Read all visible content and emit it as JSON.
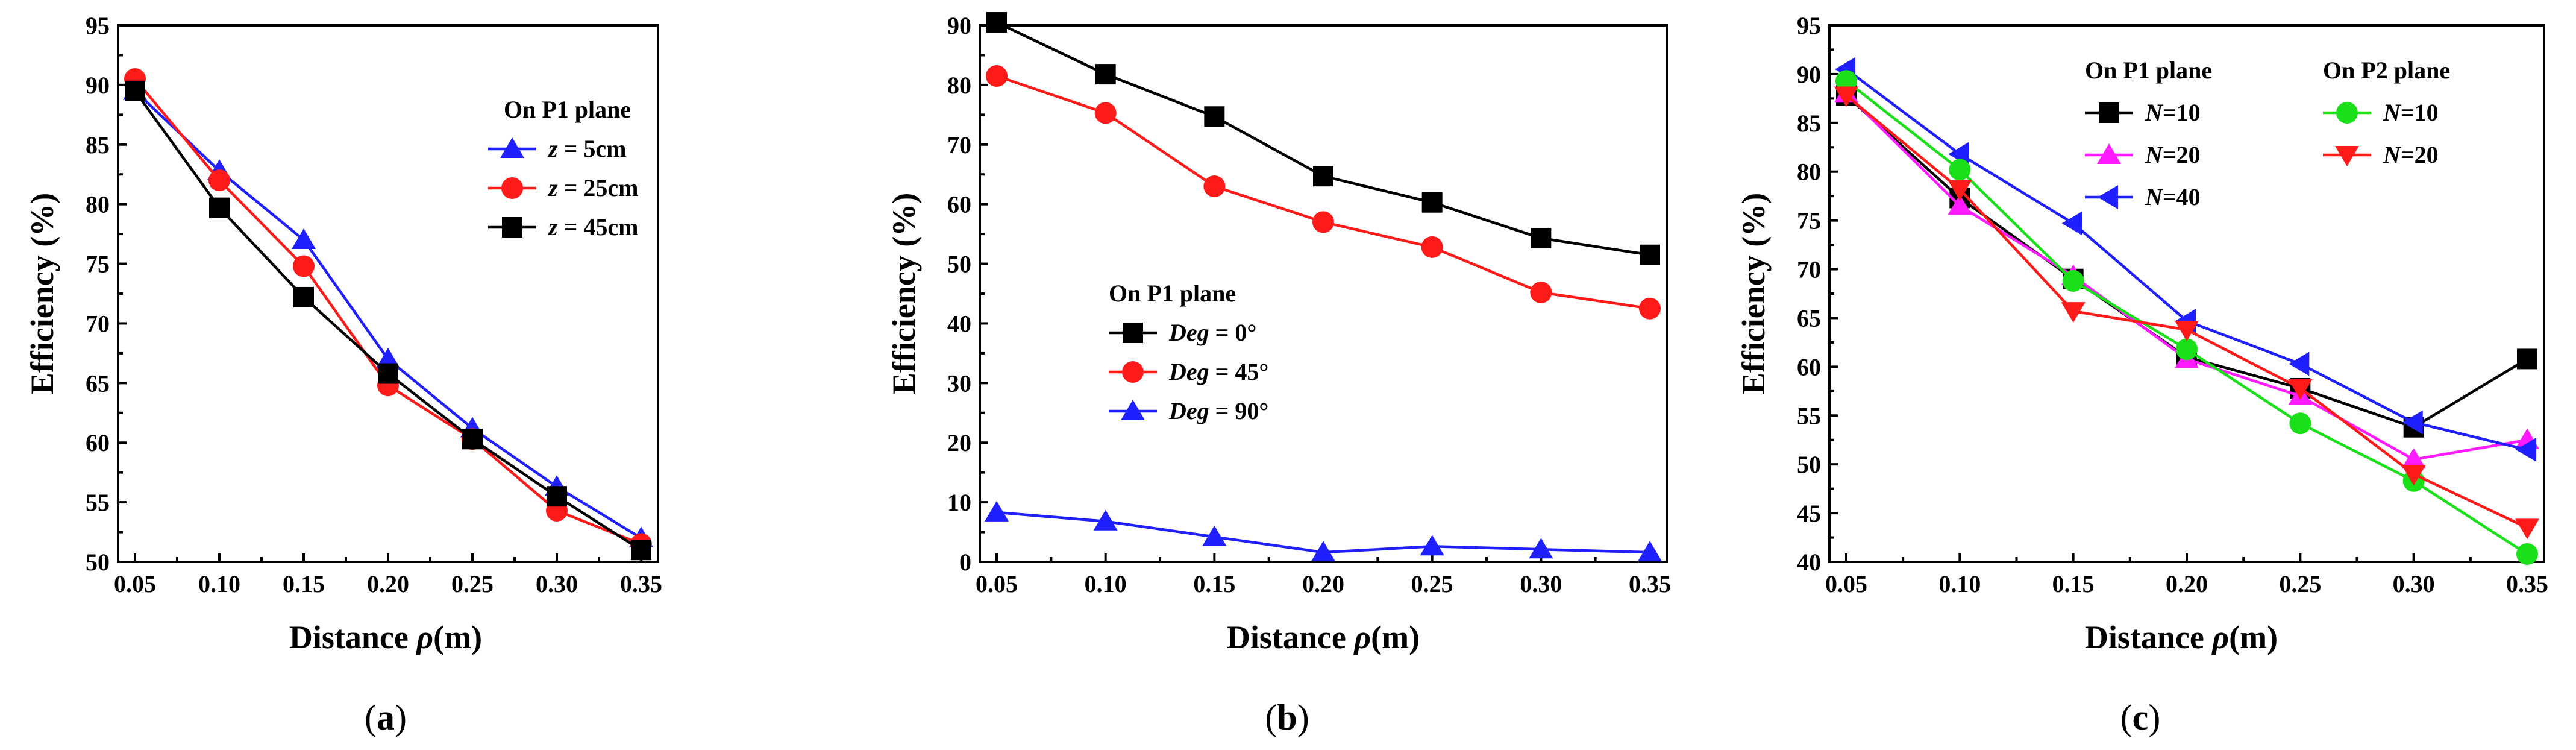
{
  "chart_data": [
    {
      "id": "a",
      "type": "line",
      "panel_label": "(a)",
      "panel_letter": "a",
      "xlabel_prefix": "Distance ",
      "xlabel_symbol": "ρ",
      "xlabel_suffix": "(m)",
      "ylabel": "Efficiency (%)",
      "xlim": [
        0.05,
        0.35
      ],
      "ylim": [
        50,
        95
      ],
      "xticks": [
        "0.05",
        "0.10",
        "0.15",
        "0.20",
        "0.25",
        "0.30",
        "0.35"
      ],
      "yticks": [
        "50",
        "55",
        "60",
        "65",
        "70",
        "75",
        "80",
        "85",
        "90",
        "95"
      ],
      "legend_groups": [
        {
          "heading": "On P1 plane",
          "entries": [
            0,
            1,
            2
          ]
        }
      ],
      "x": [
        0.05,
        0.1,
        0.15,
        0.2,
        0.25,
        0.3,
        0.35
      ],
      "series": [
        {
          "var": "z",
          "rest": " = 5cm",
          "color": "#1f1fff",
          "marker": "triangle-up",
          "values": [
            89.5,
            82.8,
            77.0,
            67.0,
            61.2,
            56.3,
            52.0
          ]
        },
        {
          "var": "z",
          "rest": " = 25cm",
          "color": "#ff1a1a",
          "marker": "circle",
          "values": [
            90.5,
            82.0,
            74.8,
            64.8,
            60.3,
            54.3,
            51.5
          ]
        },
        {
          "var": "z",
          "rest": " = 45cm",
          "color": "#000000",
          "marker": "square",
          "values": [
            89.5,
            79.7,
            72.2,
            65.8,
            60.3,
            55.5,
            51.0
          ]
        }
      ]
    },
    {
      "id": "b",
      "type": "line",
      "panel_label": "(b)",
      "panel_letter": "b",
      "xlabel_prefix": "Distance ",
      "xlabel_symbol": "ρ",
      "xlabel_suffix": "(m)",
      "ylabel": "Efficiency (%)",
      "xlim": [
        0.05,
        0.35
      ],
      "ylim": [
        0,
        90
      ],
      "xticks": [
        "0.05",
        "0.10",
        "0.15",
        "0.20",
        "0.25",
        "0.30",
        "0.35"
      ],
      "yticks": [
        "0",
        "10",
        "20",
        "30",
        "40",
        "50",
        "60",
        "70",
        "80",
        "90"
      ],
      "legend_groups": [
        {
          "heading": "On P1 plane",
          "entries": [
            0,
            1,
            2
          ]
        }
      ],
      "x": [
        0.05,
        0.1,
        0.15,
        0.2,
        0.25,
        0.3,
        0.35
      ],
      "series": [
        {
          "var": "Deg",
          "rest": " = 0°",
          "color": "#000000",
          "marker": "square",
          "values": [
            90.5,
            81.8,
            74.7,
            64.7,
            60.3,
            54.3,
            51.5
          ]
        },
        {
          "var": "Deg",
          "rest": " = 45°",
          "color": "#ff1a1a",
          "marker": "circle",
          "values": [
            81.5,
            75.3,
            63.0,
            57.0,
            52.8,
            45.2,
            42.5
          ]
        },
        {
          "var": "Deg",
          "rest": " = 90°",
          "color": "#1f1fff",
          "marker": "triangle-up",
          "values": [
            8.3,
            6.8,
            4.2,
            1.6,
            2.6,
            2.1,
            1.6
          ]
        }
      ]
    },
    {
      "id": "c",
      "type": "line",
      "panel_label": "(c)",
      "panel_letter": "c",
      "xlabel_prefix": "Distance ",
      "xlabel_symbol": "ρ",
      "xlabel_suffix": "(m)",
      "ylabel": "Efficiency (%)",
      "xlim": [
        0.05,
        0.35
      ],
      "ylim": [
        40,
        95
      ],
      "xticks": [
        "0.05",
        "0.10",
        "0.15",
        "0.20",
        "0.25",
        "0.30",
        "0.35"
      ],
      "yticks": [
        "40",
        "45",
        "50",
        "55",
        "60",
        "65",
        "70",
        "75",
        "80",
        "85",
        "90",
        "95"
      ],
      "legend_groups": [
        {
          "heading": "On P1 plane",
          "entries": [
            0,
            1,
            2
          ]
        },
        {
          "heading": "On P2 plane",
          "entries": [
            3,
            4
          ]
        }
      ],
      "x": [
        0.05,
        0.1,
        0.15,
        0.2,
        0.25,
        0.3,
        0.35
      ],
      "series": [
        {
          "var": "N",
          "rest": "=10",
          "color": "#000000",
          "marker": "square",
          "values": [
            87.8,
            77.3,
            69.0,
            61.0,
            57.8,
            53.8,
            60.8
          ]
        },
        {
          "var": "N",
          "rest": "=20",
          "color": "#ff1aff",
          "marker": "triangle-up",
          "values": [
            88.0,
            76.5,
            69.3,
            60.8,
            57.0,
            50.5,
            52.5
          ]
        },
        {
          "var": "N",
          "rest": "=40",
          "color": "#1f1fff",
          "marker": "triangle-left",
          "values": [
            90.5,
            81.8,
            74.7,
            64.7,
            60.3,
            54.3,
            51.5
          ]
        },
        {
          "var": "N",
          "rest": "=10",
          "color": "#1ae01a",
          "marker": "circle",
          "values": [
            89.3,
            80.2,
            68.8,
            61.8,
            54.2,
            48.3,
            40.8
          ]
        },
        {
          "var": "N",
          "rest": "=20",
          "color": "#ff1a1a",
          "marker": "triangle-down",
          "values": [
            87.8,
            78.2,
            65.7,
            63.8,
            57.8,
            49.0,
            43.5
          ]
        }
      ]
    }
  ]
}
